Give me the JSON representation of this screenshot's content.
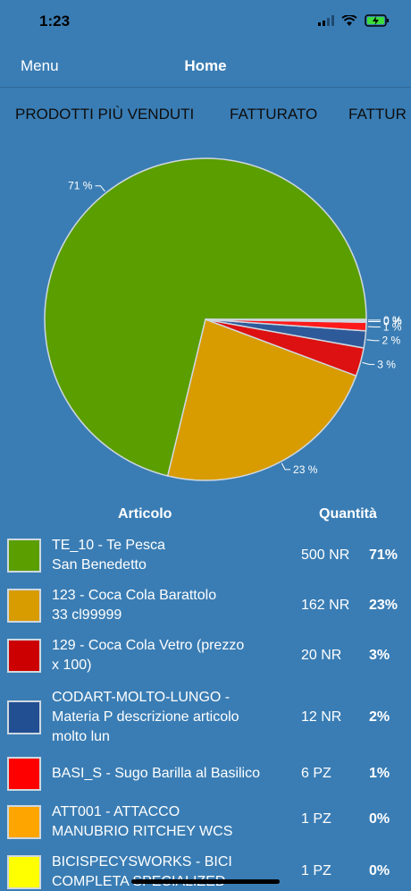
{
  "status": {
    "time": "1:23"
  },
  "nav": {
    "menu_label": "Menu",
    "title": "Home"
  },
  "tabs": [
    {
      "label": "PRODOTTI PIÙ VENDUTI"
    },
    {
      "label": "FATTURATO"
    },
    {
      "label": "FATTUR"
    }
  ],
  "chart_data": {
    "type": "pie",
    "labels": [
      "TE_10 - Te Pesca San Benedetto",
      "123 - Coca Cola Barattolo 33 cl99999",
      "129 - Coca Cola Vetro  (prezzo x 100)",
      "CODART-MOLTO-LUNGO - Materia P descrizione articolo molto lun",
      "BASI_S - Sugo Barilla al Basilico",
      "ATT001 - ATTACCO MANUBRIO RITCHEY WCS",
      "BICISPECYSWORKS - BICI COMPLETA SPECIALIZED"
    ],
    "values": [
      500,
      162,
      20,
      12,
      6,
      1,
      1
    ],
    "percent_labels": [
      "71 %",
      "23 %",
      "3 %",
      "2 %",
      "1 %",
      "0 %",
      "0 %"
    ],
    "colors": [
      "#5a9e00",
      "#d89b00",
      "#dd1111",
      "#2e5a9a",
      "#ff1a1a",
      "#ffa500",
      "#ffff00"
    ]
  },
  "table": {
    "header_articolo": "Articolo",
    "header_quantita": "Quantità",
    "rows": [
      {
        "line1": "TE_10 - Te Pesca",
        "line2": "San Benedetto",
        "line3": "",
        "qty": "500 NR",
        "pct": "71%",
        "color": "#5a9e00"
      },
      {
        "line1": "123 - Coca Cola Barattolo",
        "line2": "33 cl99999",
        "line3": "",
        "qty": "162 NR",
        "pct": "23%",
        "color": "#d89b00"
      },
      {
        "line1": "129 - Coca Cola Vetro  (prezzo",
        "line2": "x 100)",
        "line3": "",
        "qty": "20 NR",
        "pct": "3%",
        "color": "#cc0000"
      },
      {
        "line1": "CODART-MOLTO-LUNGO -",
        "line2": "Materia P descrizione articolo",
        "line3": "molto lun",
        "qty": "12 NR",
        "pct": "2%",
        "color": "#224e92"
      },
      {
        "line1": "BASI_S - Sugo Barilla al Basilico",
        "line2": "",
        "line3": "",
        "qty": "6 PZ",
        "pct": "1%",
        "color": "#ff0000"
      },
      {
        "line1": "ATT001 - ATTACCO",
        "line2": "MANUBRIO RITCHEY WCS",
        "line3": "",
        "qty": "1 PZ",
        "pct": "0%",
        "color": "#ffa500"
      },
      {
        "line1": "BICISPECYSWORKS - BICI",
        "line2": "COMPLETA SPECIALIZED",
        "line3": "",
        "qty": "1 PZ",
        "pct": "0%",
        "color": "#ffff00"
      }
    ]
  }
}
